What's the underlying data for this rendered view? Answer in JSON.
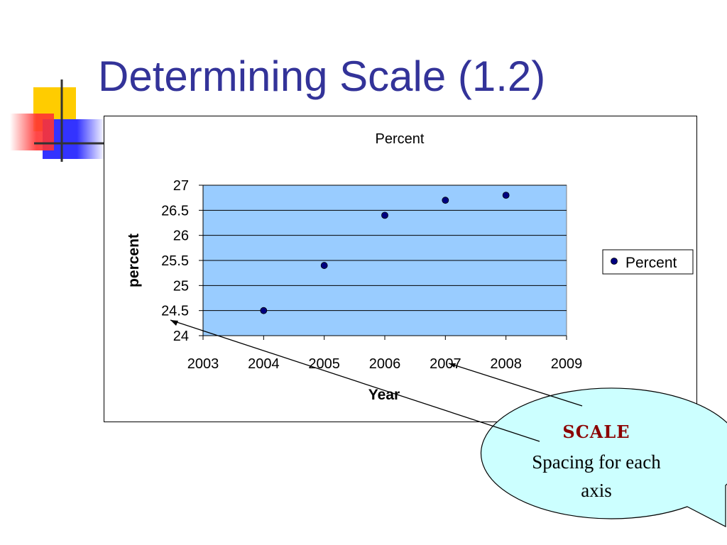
{
  "slide": {
    "title": "Determining Scale (1.2)",
    "title_color": "#333399"
  },
  "chart_data": {
    "type": "scatter",
    "title": "Percent",
    "xlabel": "Year",
    "ylabel": "percent",
    "xlim": [
      2003,
      2009
    ],
    "ylim": [
      24,
      27
    ],
    "x_ticks": [
      2003,
      2004,
      2005,
      2006,
      2007,
      2008,
      2009
    ],
    "y_ticks": [
      24,
      24.5,
      25,
      25.5,
      26,
      26.5,
      27
    ],
    "y_tick_labels": [
      "24",
      "24.5",
      "25",
      "25.5",
      "26",
      "26.5",
      "27"
    ],
    "grid": "horizontal",
    "plot_background": "#99ccff",
    "series": [
      {
        "name": "Percent",
        "color": "#000080",
        "x": [
          2004,
          2005,
          2006,
          2007,
          2008
        ],
        "y": [
          24.5,
          25.4,
          26.4,
          26.7,
          26.8
        ]
      }
    ],
    "legend": {
      "position": "right",
      "entries": [
        "Percent"
      ]
    }
  },
  "callout": {
    "title": "SCALE",
    "line1": "Spacing for each",
    "line2": "axis",
    "fill": "#ccffff",
    "title_color": "#8b0000"
  }
}
